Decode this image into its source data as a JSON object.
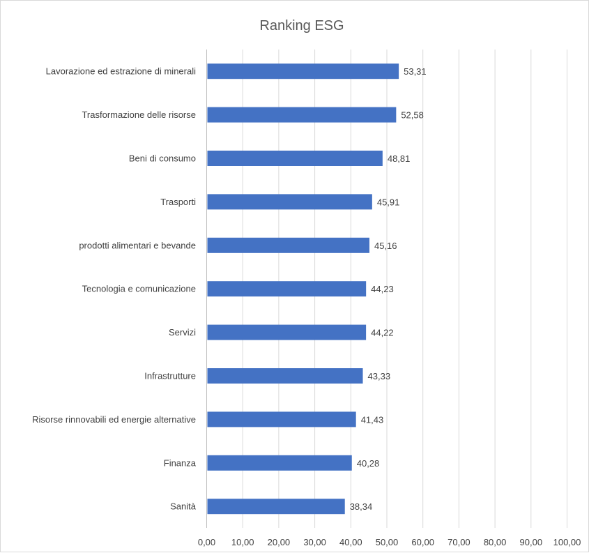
{
  "chart_data": {
    "type": "bar",
    "orientation": "horizontal",
    "title": "Ranking ESG",
    "xlabel": "",
    "ylabel": "",
    "categories": [
      "Lavorazione ed estrazione di minerali",
      "Trasformazione delle risorse",
      "Beni di consumo",
      "Trasporti",
      "prodotti alimentari e bevande",
      "Tecnologia e comunicazione",
      "Servizi",
      "Infrastrutture",
      "Risorse rinnovabili ed energie alternative",
      "Finanza",
      "Sanità"
    ],
    "values": [
      53.31,
      52.58,
      48.81,
      45.91,
      45.16,
      44.23,
      44.22,
      43.33,
      41.43,
      40.28,
      38.34
    ],
    "data_labels": [
      "53,31",
      "52,58",
      "48,81",
      "45,91",
      "45,16",
      "44,23",
      "44,22",
      "43,33",
      "41,43",
      "40,28",
      "38,34"
    ],
    "xlim": [
      0,
      100
    ],
    "x_ticks": [
      0,
      10,
      20,
      30,
      40,
      50,
      60,
      70,
      80,
      90,
      100
    ],
    "x_tick_labels": [
      "0,00",
      "10,00",
      "20,00",
      "30,00",
      "40,00",
      "50,00",
      "60,00",
      "70,00",
      "80,00",
      "90,00",
      "100,00"
    ],
    "grid": true,
    "legend": "none",
    "colors": {
      "bar": "#4472C4",
      "gridline": "#d9d9d9",
      "text": "#404040",
      "title": "#595959"
    }
  }
}
